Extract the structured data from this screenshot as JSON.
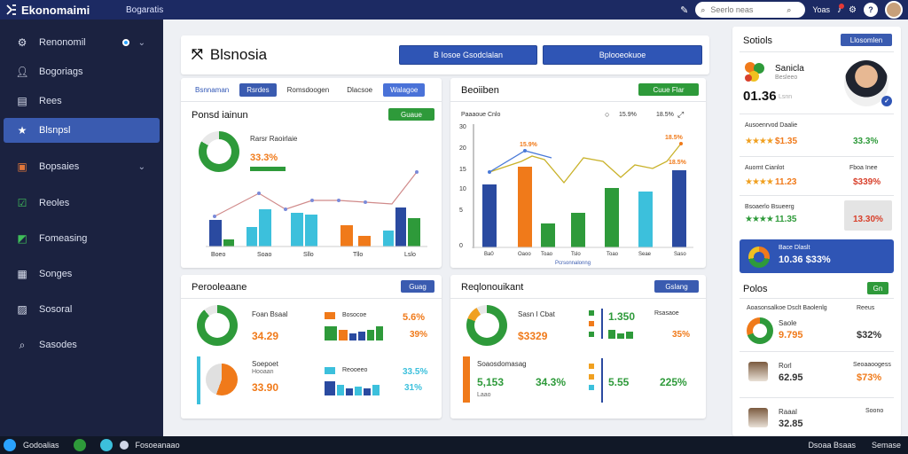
{
  "topbar": {
    "brand": "Ekonomaimi",
    "menu": "Bogaratis",
    "search_placeholder": "Seerlo neas",
    "user_label": "Yoas"
  },
  "sidebar": {
    "items": [
      {
        "label": "Renonomil",
        "icon": "gear-icon"
      },
      {
        "label": "Bogoriags",
        "icon": "user-icon"
      },
      {
        "label": "Rees",
        "icon": "document-icon"
      },
      {
        "label": "Blsnpsl",
        "icon": "star-icon"
      },
      {
        "label": "Bopsaies",
        "icon": "calendar-icon"
      },
      {
        "label": "Reoles",
        "icon": "check-icon"
      },
      {
        "label": "Fomeasing",
        "icon": "chart-icon"
      },
      {
        "label": "Songes",
        "icon": "grid-icon"
      },
      {
        "label": "Sosoral",
        "icon": "folder-icon"
      },
      {
        "label": "Sasodes",
        "icon": "search-icon"
      }
    ]
  },
  "main": {
    "title": "Blsnosia",
    "btn1": "B Iosoe Gsodclalan",
    "btn2": "Bplooeokuoe"
  },
  "card1": {
    "tabs": [
      "Bsnnaman",
      "Rsrdes",
      "Romsdoogen",
      "Dlacsoe",
      "Walagoe"
    ],
    "title": "Ponsd iainun",
    "pill": "Guaue",
    "legend_title": "Rarsr Raoirlaie",
    "value": "33.3%",
    "xlabels": [
      "Boeo",
      "Soao",
      "Sllo",
      "Tllo",
      "Lslo"
    ]
  },
  "card2": {
    "title": "Beoiiben",
    "pill": "Cuue Flar",
    "legend": "Paaaoue Cnlo",
    "yticks": [
      "30",
      "20",
      "15",
      "10",
      "5",
      "0"
    ],
    "xlabels": [
      "Ba0",
      "Oaoo",
      "Toao",
      "Tslo",
      "Toao",
      "Seae",
      "Saso"
    ],
    "callouts": [
      "15.9%",
      "18.5%",
      "18.5%"
    ],
    "footer": "Pcrsonnalonng"
  },
  "card3": {
    "title": "Perooleaane",
    "pill": "Guag",
    "row1_label": "Foan Bsaal",
    "row1_value": "34.29",
    "row1_legend": "Bosocoe",
    "row1_pct1": "5.6%",
    "row1_pct2": "39%",
    "row2_label": "Soepoet",
    "row2_sub": "Hooaan",
    "row2_value": "33.90",
    "row2_legend": "Reooeeo",
    "row2_pct1": "33.5%",
    "row2_pct2": "31%"
  },
  "card4": {
    "title": "Reqlonouikant",
    "pill": "Gslang",
    "row1_label": "Sasn I Cbat",
    "row1_value": "$3329",
    "row1_num": "1.350",
    "row1_pct": "35%",
    "row1_legend": "Rsasaoe",
    "row2_label": "Soaosdomasag",
    "row2_value": "5,153",
    "row2_sub": "Laao",
    "row2_pct": "34.3%",
    "row2_num": "5.55",
    "row2_pct2": "225%"
  },
  "right_panel": {
    "title": "Sotiols",
    "button": "Llosomlen",
    "company_name": "Sanicla",
    "company_sub": "Besleeo",
    "company_value": "01.36",
    "company_sub2": "Lsnn",
    "rows": [
      {
        "name": "Ausoenrvod Daalie",
        "value": "$1.35",
        "pct": "33.3%",
        "rating": "★★★★"
      },
      {
        "name": "Auornt Cianlot",
        "value": "11.23",
        "pct": "$339%",
        "rating": "★★★★"
      },
      {
        "name": "Bsoaerlo Bsueerg",
        "value": "11.35",
        "pct": "13.30%",
        "rating": "★★★★"
      }
    ],
    "highlight_label": "Bace Dlaslt",
    "highlight_value": "10.36 $33%",
    "polos_title": "Polos",
    "polos_button": "Gn",
    "people": [
      {
        "head": "Aoasonsalkoe Dsclt Baolenlg",
        "name": "Saole",
        "value": "9.795",
        "pct": "$32%",
        "sub": "Reeus"
      },
      {
        "head": "",
        "name": "Rorl",
        "value": "62.95",
        "pct": "$73%",
        "sub": "Seoaaoogess"
      },
      {
        "head": "",
        "name": "Raaal",
        "value": "32.85",
        "pct": "",
        "sub": "Soono"
      }
    ]
  },
  "bottombar": {
    "left": "Godoalias",
    "mid": "Fosoeanaao",
    "right1": "Dsoaa Bsaas",
    "right2": "Semase"
  },
  "colors": {
    "accent": "#2f55b5",
    "sidebar": "#1b2240",
    "topbar": "#1c2a63",
    "green": "#2e9a3a",
    "orange": "#f07a1a",
    "cyan": "#3cc0dc"
  }
}
